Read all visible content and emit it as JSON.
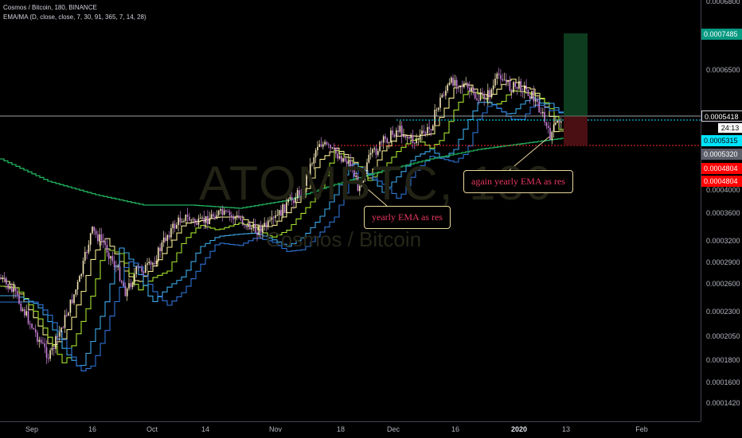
{
  "header": {
    "symbol_line": "Cosmos / Bitcoin, 180, BINANCE",
    "indicator_line": "EMA/MA (D, close, close, 7, 30, 91, 365, 7, 14, 28)"
  },
  "watermark": {
    "ticker": "ATOMBTC, 180",
    "name": "Cosmos / Bitcoin"
  },
  "annotations": {
    "yearly_ema": "yearly EMA as res",
    "again_yearly_ema": "again yearly EMA as res"
  },
  "price_axis": {
    "ticks": [
      {
        "label": "0.0006500",
        "value": 0.00065
      },
      {
        "label": "0.0004000",
        "value": 0.0004
      },
      {
        "label": "0.0003600",
        "value": 0.00036
      },
      {
        "label": "0.0003200",
        "value": 0.00032
      },
      {
        "label": "0.0002900",
        "value": 0.00029
      },
      {
        "label": "0.0002600",
        "value": 0.00026
      },
      {
        "label": "0.0002300",
        "value": 0.00023
      },
      {
        "label": "0.0002050",
        "value": 0.000205
      },
      {
        "label": "0.0001800",
        "value": 0.00018
      },
      {
        "label": "0.0001600",
        "value": 0.00016
      },
      {
        "label": "0.0001420",
        "value": 0.000142
      }
    ],
    "tags": {
      "target": "0.0007485",
      "entry": "0.0005418",
      "countdown": "24:13",
      "cyan": "0.0005315",
      "grey": "0.0005320",
      "stop1": "0.0004804",
      "stop2": "0.0004804"
    },
    "colors": {
      "target": "#089981",
      "cyan": "#00e5ff",
      "grey": "#5d606b",
      "stop": "#ff0000"
    }
  },
  "time_axis": {
    "ticks": [
      {
        "label": "Sep",
        "bold": false
      },
      {
        "label": "16",
        "bold": false
      },
      {
        "label": "Oct",
        "bold": false
      },
      {
        "label": "14",
        "bold": false
      },
      {
        "label": "Nov",
        "bold": false
      },
      {
        "label": "18",
        "bold": false
      },
      {
        "label": "Dec",
        "bold": false
      },
      {
        "label": "16",
        "bold": false
      },
      {
        "label": "2020",
        "bold": true
      },
      {
        "label": "13",
        "bold": false
      },
      {
        "label": "Feb",
        "bold": false
      }
    ]
  }
}
